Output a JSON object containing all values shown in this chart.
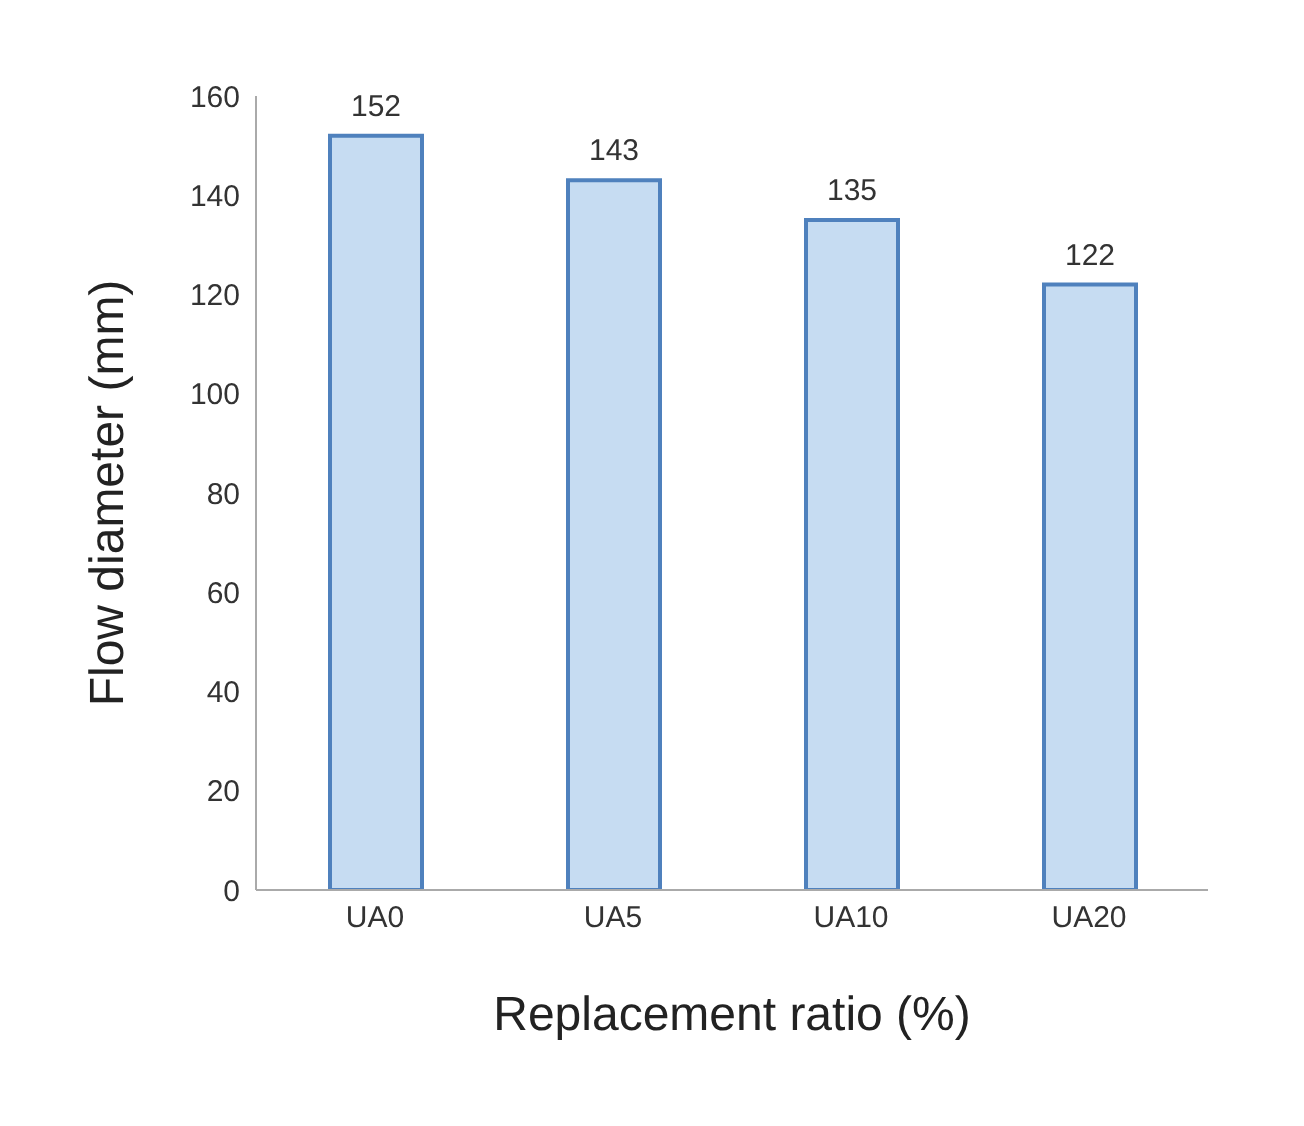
{
  "chart_data": {
    "type": "bar",
    "xlabel": "Replacement ratio (%)",
    "ylabel": "Flow diameter (mm)",
    "categories": [
      "UA0",
      "UA5",
      "UA10",
      "UA20"
    ],
    "values": [
      152,
      143,
      135,
      122
    ],
    "color": "#c6dcf2",
    "ylim": [
      0,
      160
    ],
    "yticks": [
      0,
      20,
      40,
      60,
      80,
      100,
      120,
      140,
      160
    ],
    "grid": false,
    "data_labels": true
  }
}
